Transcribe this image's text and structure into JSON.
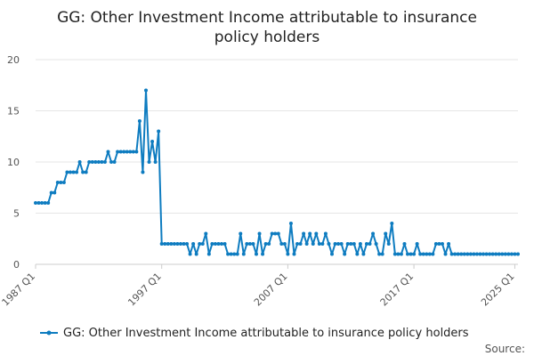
{
  "chart_data": {
    "type": "line",
    "title": "GG: Other Investment Income attributable to insurance policy holders",
    "title_lines": [
      "GG: Other Investment Income attributable to insurance",
      "policy holders"
    ],
    "xlabel": "",
    "ylabel": "",
    "ylim": [
      0,
      20
    ],
    "yticks": [
      0,
      5,
      10,
      15,
      20
    ],
    "xtick_labels": [
      "1987 Q1",
      "1997 Q1",
      "2007 Q1",
      "2017 Q1",
      "2025 Q1"
    ],
    "x_start": "1987 Q1",
    "x_end": "2025 Q1",
    "grid": true,
    "legend_position": "bottom",
    "source_label": "Source:",
    "color": "#0e7cc0",
    "series": [
      {
        "name": "GG: Other Investment Income attributable to insurance policy holders",
        "values": [
          6,
          6,
          6,
          6,
          6,
          7,
          7,
          8,
          8,
          8,
          9,
          9,
          9,
          9,
          10,
          9,
          9,
          10,
          10,
          10,
          10,
          10,
          10,
          11,
          10,
          10,
          11,
          11,
          11,
          11,
          11,
          11,
          11,
          14,
          9,
          17,
          10,
          12,
          10,
          13,
          2,
          2,
          2,
          2,
          2,
          2,
          2,
          2,
          2,
          1,
          2,
          1,
          2,
          2,
          3,
          1,
          2,
          2,
          2,
          2,
          2,
          1,
          1,
          1,
          1,
          3,
          1,
          2,
          2,
          2,
          1,
          3,
          1,
          2,
          2,
          3,
          3,
          3,
          2,
          2,
          1,
          4,
          1,
          2,
          2,
          3,
          2,
          3,
          2,
          3,
          2,
          2,
          3,
          2,
          1,
          2,
          2,
          2,
          1,
          2,
          2,
          2,
          1,
          2,
          1,
          2,
          2,
          3,
          2,
          1,
          1,
          3,
          2,
          4,
          1,
          1,
          1,
          2,
          1,
          1,
          1,
          2,
          1,
          1,
          1,
          1,
          1,
          2,
          2,
          2,
          1,
          2,
          1,
          1,
          1,
          1,
          1,
          1,
          1,
          1,
          1,
          1,
          1,
          1,
          1,
          1,
          1,
          1,
          1,
          1,
          1,
          1,
          1,
          1
        ]
      }
    ]
  }
}
